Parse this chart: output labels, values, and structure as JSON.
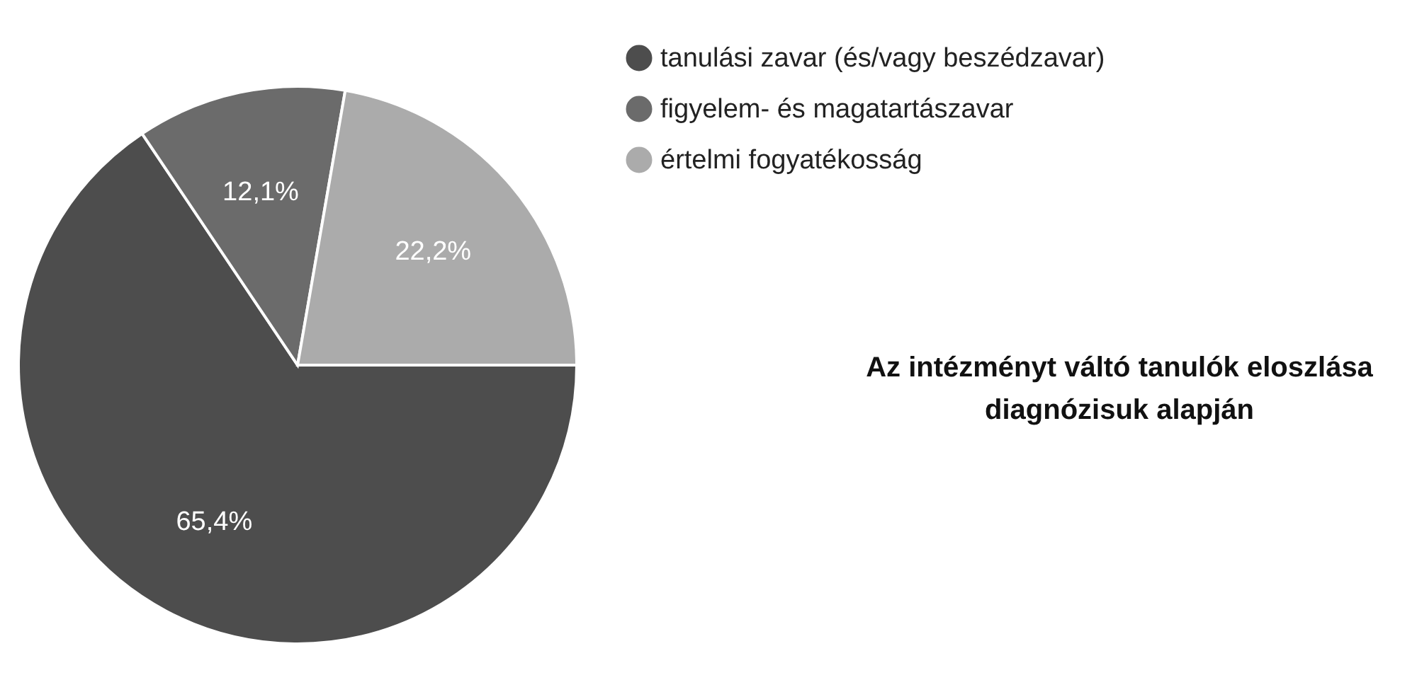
{
  "chart_data": {
    "type": "pie",
    "title": "Az intézményt váltó tanulók eloszlása\ndiagnózisuk alapján",
    "categories": [
      "tanulási zavar (és/vagy beszédzavar)",
      "figyelem- és magatartászavar",
      "értelmi fogyatékosság"
    ],
    "values": [
      65.4,
      12.1,
      22.2
    ],
    "colors": [
      "#4d4d4d",
      "#6b6b6b",
      "#ababab"
    ],
    "value_labels": [
      "65,4%",
      "12,1%",
      "22,2%"
    ],
    "legend": "top right"
  }
}
